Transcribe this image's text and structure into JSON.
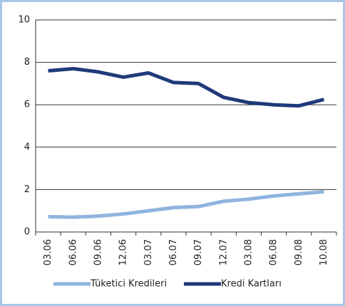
{
  "chart_data": {
    "type": "line",
    "categories": [
      "03.06",
      "06.06",
      "09.06",
      "12.06",
      "03.07",
      "06.07",
      "09.07",
      "12.07",
      "03.08",
      "06.08",
      "09.08",
      "10.08"
    ],
    "series": [
      {
        "name": "Tüketici Kredileri",
        "color": "#8fb4de",
        "values": [
          0.72,
          0.7,
          0.75,
          0.85,
          1.0,
          1.15,
          1.2,
          1.45,
          1.55,
          1.7,
          1.8,
          1.9
        ]
      },
      {
        "name": "Kredi Kartları",
        "color": "#1f3a7a",
        "values": [
          7.6,
          7.7,
          7.55,
          7.3,
          7.5,
          7.05,
          7.0,
          6.35,
          6.1,
          6.0,
          5.95,
          6.25
        ]
      }
    ],
    "ylim": [
      0,
      10
    ],
    "yticks": [
      0,
      2,
      4,
      6,
      8,
      10
    ],
    "grid": true
  }
}
